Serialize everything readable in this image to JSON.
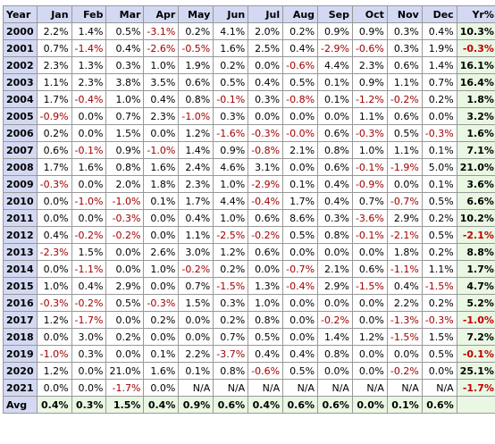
{
  "chart_data": {
    "type": "table",
    "columns": [
      "Year",
      "Jan",
      "Feb",
      "Mar",
      "Apr",
      "May",
      "Jun",
      "Jul",
      "Aug",
      "Sep",
      "Oct",
      "Nov",
      "Dec",
      "Yr%"
    ],
    "rows": [
      [
        "2000",
        "2.2%",
        "1.4%",
        "0.5%",
        "-3.1%",
        "0.2%",
        "4.1%",
        "2.0%",
        "0.2%",
        "0.9%",
        "0.9%",
        "0.3%",
        "0.4%",
        "10.3%"
      ],
      [
        "2001",
        "0.7%",
        "-1.4%",
        "0.4%",
        "-2.6%",
        "-0.5%",
        "1.6%",
        "2.5%",
        "0.4%",
        "-2.9%",
        "-0.6%",
        "0.3%",
        "1.9%",
        "-0.3%"
      ],
      [
        "2002",
        "2.3%",
        "1.3%",
        "0.3%",
        "1.0%",
        "1.9%",
        "0.2%",
        "0.0%",
        "-0.6%",
        "4.4%",
        "2.3%",
        "0.6%",
        "1.4%",
        "16.1%"
      ],
      [
        "2003",
        "1.1%",
        "2.3%",
        "3.8%",
        "3.5%",
        "0.6%",
        "0.5%",
        "0.4%",
        "0.5%",
        "0.1%",
        "0.9%",
        "1.1%",
        "0.7%",
        "16.4%"
      ],
      [
        "2004",
        "1.7%",
        "-0.4%",
        "1.0%",
        "0.4%",
        "0.8%",
        "-0.1%",
        "0.3%",
        "-0.8%",
        "0.1%",
        "-1.2%",
        "-0.2%",
        "0.2%",
        "1.8%"
      ],
      [
        "2005",
        "-0.9%",
        "0.0%",
        "0.7%",
        "2.3%",
        "-1.0%",
        "0.3%",
        "0.0%",
        "0.0%",
        "0.0%",
        "1.1%",
        "0.6%",
        "0.0%",
        "3.2%"
      ],
      [
        "2006",
        "0.2%",
        "0.0%",
        "1.5%",
        "0.0%",
        "1.2%",
        "-1.6%",
        "-0.3%",
        "-0.0%",
        "0.6%",
        "-0.3%",
        "0.5%",
        "-0.3%",
        "1.6%"
      ],
      [
        "2007",
        "0.6%",
        "-0.1%",
        "0.9%",
        "-1.0%",
        "1.4%",
        "0.9%",
        "-0.8%",
        "2.1%",
        "0.8%",
        "1.0%",
        "1.1%",
        "0.1%",
        "7.1%"
      ],
      [
        "2008",
        "1.7%",
        "1.6%",
        "0.8%",
        "1.6%",
        "2.4%",
        "4.6%",
        "3.1%",
        "0.0%",
        "0.6%",
        "-0.1%",
        "-1.9%",
        "5.0%",
        "21.0%"
      ],
      [
        "2009",
        "-0.3%",
        "0.0%",
        "2.0%",
        "1.8%",
        "2.3%",
        "1.0%",
        "-2.9%",
        "0.1%",
        "0.4%",
        "-0.9%",
        "0.0%",
        "0.1%",
        "3.6%"
      ],
      [
        "2010",
        "0.0%",
        "-1.0%",
        "-1.0%",
        "0.1%",
        "1.7%",
        "4.4%",
        "-0.4%",
        "1.7%",
        "0.4%",
        "0.7%",
        "-0.7%",
        "0.5%",
        "6.6%"
      ],
      [
        "2011",
        "0.0%",
        "0.0%",
        "-0.3%",
        "0.0%",
        "0.4%",
        "1.0%",
        "0.6%",
        "8.6%",
        "0.3%",
        "-3.6%",
        "2.9%",
        "0.2%",
        "10.2%"
      ],
      [
        "2012",
        "0.4%",
        "-0.2%",
        "-0.2%",
        "0.0%",
        "1.1%",
        "-2.5%",
        "-0.2%",
        "0.5%",
        "0.8%",
        "-0.1%",
        "-2.1%",
        "0.5%",
        "-2.1%"
      ],
      [
        "2013",
        "-2.3%",
        "1.5%",
        "0.0%",
        "2.6%",
        "3.0%",
        "1.2%",
        "0.6%",
        "0.0%",
        "0.0%",
        "0.0%",
        "1.8%",
        "0.2%",
        "8.8%"
      ],
      [
        "2014",
        "0.0%",
        "-1.1%",
        "0.0%",
        "1.0%",
        "-0.2%",
        "0.2%",
        "0.0%",
        "-0.7%",
        "2.1%",
        "0.6%",
        "-1.1%",
        "1.1%",
        "1.7%"
      ],
      [
        "2015",
        "1.0%",
        "0.4%",
        "2.9%",
        "0.0%",
        "0.7%",
        "-1.5%",
        "1.3%",
        "-0.4%",
        "2.9%",
        "-1.5%",
        "0.4%",
        "-1.5%",
        "4.7%"
      ],
      [
        "2016",
        "-0.3%",
        "-0.2%",
        "0.5%",
        "-0.3%",
        "1.5%",
        "0.3%",
        "1.0%",
        "0.0%",
        "0.0%",
        "0.0%",
        "2.2%",
        "0.2%",
        "5.2%"
      ],
      [
        "2017",
        "1.2%",
        "-1.7%",
        "0.0%",
        "0.2%",
        "0.0%",
        "0.2%",
        "0.8%",
        "0.0%",
        "-0.2%",
        "0.0%",
        "-1.3%",
        "-0.3%",
        "-1.0%"
      ],
      [
        "2018",
        "0.0%",
        "3.0%",
        "0.2%",
        "0.0%",
        "0.0%",
        "0.7%",
        "0.5%",
        "0.0%",
        "1.4%",
        "1.2%",
        "-1.5%",
        "1.5%",
        "7.2%"
      ],
      [
        "2019",
        "-1.0%",
        "0.3%",
        "0.0%",
        "0.1%",
        "2.2%",
        "-3.7%",
        "0.4%",
        "0.4%",
        "0.8%",
        "0.0%",
        "0.0%",
        "0.5%",
        "-0.1%"
      ],
      [
        "2020",
        "1.2%",
        "0.0%",
        "21.0%",
        "1.6%",
        "0.1%",
        "0.8%",
        "-0.6%",
        "0.5%",
        "0.0%",
        "0.0%",
        "-0.2%",
        "0.0%",
        "25.1%"
      ],
      [
        "2021",
        "0.0%",
        "0.0%",
        "-1.7%",
        "0.0%",
        "N/A",
        "N/A",
        "N/A",
        "N/A",
        "N/A",
        "N/A",
        "N/A",
        "N/A",
        "-1.7%"
      ]
    ],
    "average": [
      "Avg",
      "0.4%",
      "0.3%",
      "1.5%",
      "0.4%",
      "0.9%",
      "0.6%",
      "0.4%",
      "0.6%",
      "0.6%",
      "0.0%",
      "0.1%",
      "0.6%",
      ""
    ]
  },
  "colors": {
    "header_bg": "#d3d9f2",
    "year_total_bg": "#e9f7e3",
    "negative_text": "#a00000",
    "grid": "#999999"
  }
}
